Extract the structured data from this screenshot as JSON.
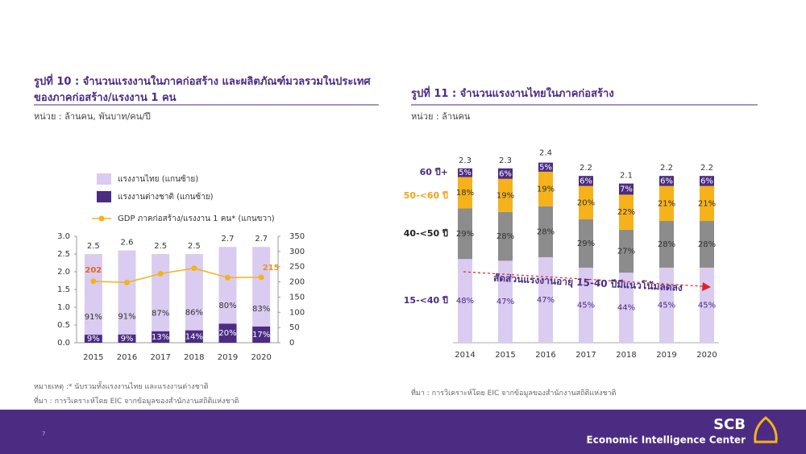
{
  "chart_data": [
    {
      "type": "combo",
      "title": "รูปที่ 10 : จำนวนแรงงานในภาคก่อสร้าง  และผลิตภัณฑ์มวลรวมในประเทศของภาคก่อสร้าง/แรงงาน 1 คน",
      "subtitle": "หน่วย : ล้านคน, พันบาท/คน/ปี",
      "note": "หมายเหตุ :* นับรวมทั้งแรงงานไทย และแรงงานต่างชาติ",
      "source": "ที่มา : การวิเคราะห์โดย EIC จากข้อมูลของสำนักงานสถิติแห่งชาติ",
      "categories": [
        "2015",
        "2016",
        "2017",
        "2018",
        "2019",
        "2020"
      ],
      "totals": [
        2.5,
        2.6,
        2.5,
        2.5,
        2.7,
        2.7
      ],
      "series": [
        {
          "name": "แรงงานไทย (แกนซ้าย)",
          "color": "#d9ccf0",
          "values": [
            91,
            91,
            87,
            86,
            80,
            83
          ],
          "value_labels": [
            "91%",
            "91%",
            "87%",
            "86%",
            "80%",
            "83%"
          ]
        },
        {
          "name": "แรงงานต่างชาติ (แกนซ้าย)",
          "color": "#4b2c82",
          "values": [
            9,
            9,
            13,
            14,
            20,
            17
          ],
          "value_labels": [
            "9%",
            "9%",
            "13%",
            "14%",
            "20%",
            "17%"
          ]
        },
        {
          "name": "GDP ภาคก่อสร้าง/แรงงาน 1 คน* (แกนขวา)",
          "color": "#f5b21a",
          "axis": "y2",
          "values": [
            202,
            198,
            227,
            245,
            214,
            215
          ],
          "value_labels": [
            "202",
            null,
            null,
            null,
            null,
            "215"
          ]
        }
      ],
      "ylim": [
        0,
        3
      ],
      "yticks": [
        {
          "value": 0,
          "label": "0.0"
        },
        0.5,
        {
          "value": 1,
          "label": "1.0"
        },
        1.5,
        {
          "value": 2,
          "label": "2.0"
        },
        2.5,
        {
          "value": 3,
          "label": "3.0"
        }
      ],
      "y2lim": [
        0,
        350
      ],
      "y2ticks": [
        0,
        50,
        100,
        150,
        200,
        250,
        300,
        350
      ]
    },
    {
      "type": "bar",
      "title": "รูปที่ 11 : จำนวนแรงงานไทยในภาคก่อสร้าง",
      "subtitle": "หน่วย : ล้านคน",
      "source": "ที่มา : การวิเคราะห์โดย EIC จากข้อมูลของสำนักงานสถิติแห่งชาติ",
      "annotation": "สัดส่วนแรงงานอายุ 15-40 ปีมีแนวโน้มลดลง",
      "categories": [
        "2014",
        "2015",
        "2016",
        "2017",
        "2018",
        "2019",
        "2020"
      ],
      "totals": [
        2.3,
        2.3,
        2.4,
        2.2,
        2.1,
        2.2,
        2.2
      ],
      "series": [
        {
          "name": "15-<40 ปี",
          "color": "#d9ccf0",
          "values": [
            48,
            47,
            47,
            45,
            44,
            45,
            45
          ],
          "value_labels": [
            "48%",
            "47%",
            "47%",
            "45%",
            "44%",
            "45%",
            "45%"
          ]
        },
        {
          "name": "40-<50 ปี",
          "color": "#8c8c8c",
          "values": [
            29,
            28,
            28,
            29,
            27,
            28,
            28
          ],
          "value_labels": [
            "29%",
            "28%",
            "28%",
            "29%",
            "27%",
            "28%",
            "28%"
          ]
        },
        {
          "name": "50-<60 ปี",
          "color": "#f5b21a",
          "values": [
            18,
            19,
            19,
            20,
            22,
            21,
            21
          ],
          "value_labels": [
            "18%",
            "19%",
            "19%",
            "20%",
            "22%",
            "21%",
            "21%"
          ]
        },
        {
          "name": "60 ปี+",
          "color": "#4b2c82",
          "values": [
            5,
            6,
            5,
            6,
            7,
            6,
            6
          ],
          "value_labels": [
            "5%",
            "6%",
            "5%",
            "6%",
            "7%",
            "6%",
            "6%"
          ]
        }
      ]
    }
  ],
  "footer": {
    "page": "7",
    "brand": "SCB",
    "unit": "Economic Intelligence Center"
  }
}
